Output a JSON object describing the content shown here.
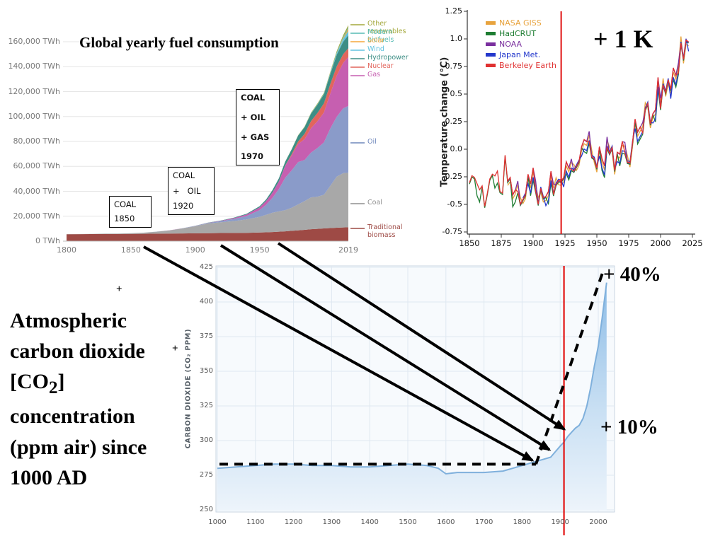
{
  "chart_data": [
    {
      "id": "fuel",
      "type": "area",
      "stacked": true,
      "title": "Global yearly fuel consumption",
      "x": [
        1800,
        1810,
        1820,
        1830,
        1840,
        1850,
        1860,
        1870,
        1880,
        1890,
        1900,
        1910,
        1920,
        1930,
        1940,
        1950,
        1955,
        1960,
        1965,
        1970,
        1975,
        1980,
        1985,
        1990,
        1995,
        2000,
        2005,
        2010,
        2015,
        2019
      ],
      "series": [
        {
          "name": "Traditional biomass",
          "color": "#9E4A45",
          "values": [
            5550,
            5600,
            5650,
            5700,
            5750,
            5800,
            5900,
            6000,
            6100,
            6200,
            6300,
            6400,
            6500,
            6600,
            6700,
            6900,
            7100,
            7300,
            7600,
            7900,
            8300,
            8700,
            9100,
            9600,
            9900,
            10200,
            10500,
            10800,
            11000,
            11100
          ]
        },
        {
          "name": "Coal",
          "color": "#A8A8A8",
          "values": [
            100,
            150,
            200,
            300,
            400,
            570,
            900,
            1600,
            2500,
            4000,
            5700,
            7800,
            8700,
            9500,
            10800,
            12600,
            14000,
            15500,
            16300,
            17000,
            18500,
            20800,
            23000,
            25500,
            25800,
            27000,
            34000,
            41000,
            43500,
            43800
          ]
        },
        {
          "name": "Oil",
          "color": "#8A9BC9",
          "values": [
            0,
            0,
            0,
            0,
            0,
            0,
            10,
            60,
            90,
            130,
            180,
            400,
            900,
            1700,
            2700,
            5400,
            8000,
            12000,
            18000,
            26000,
            30000,
            34000,
            33000,
            36000,
            39000,
            42000,
            46000,
            48000,
            52000,
            53600
          ]
        },
        {
          "name": "Gas",
          "color": "#C65FB0",
          "values": [
            0,
            0,
            0,
            0,
            0,
            0,
            0,
            10,
            30,
            50,
            80,
            150,
            300,
            700,
            1200,
            2200,
            3000,
            4200,
            6000,
            9600,
            12000,
            14500,
            16800,
            19500,
            21500,
            24000,
            28000,
            33000,
            36500,
            39300
          ]
        },
        {
          "name": "Nuclear",
          "color": "#E2655C",
          "values": [
            0,
            0,
            0,
            0,
            0,
            0,
            0,
            0,
            0,
            0,
            0,
            0,
            0,
            0,
            0,
            0,
            0,
            0,
            30,
            220,
            1000,
            2000,
            4200,
            5700,
            6600,
            7300,
            7600,
            7400,
            7000,
            7000
          ]
        },
        {
          "name": "Hydropower",
          "color": "#3D8E85",
          "values": [
            0,
            0,
            0,
            0,
            0,
            0,
            0,
            0,
            10,
            30,
            50,
            100,
            200,
            400,
            600,
            900,
            1200,
            1900,
            2500,
            3100,
            3900,
            4700,
            5300,
            6000,
            6700,
            7300,
            8100,
            9300,
            10000,
            10500
          ]
        },
        {
          "name": "Wind",
          "color": "#62C3E0",
          "values": [
            0,
            0,
            0,
            0,
            0,
            0,
            0,
            0,
            0,
            0,
            0,
            0,
            0,
            0,
            0,
            0,
            0,
            0,
            0,
            0,
            0,
            0,
            0,
            0,
            20,
            90,
            300,
            900,
            2200,
            3500
          ]
        },
        {
          "name": "Solar",
          "color": "#F5A73B",
          "values": [
            0,
            0,
            0,
            0,
            0,
            0,
            0,
            0,
            0,
            0,
            0,
            0,
            0,
            0,
            0,
            0,
            0,
            0,
            0,
            0,
            0,
            0,
            0,
            0,
            0,
            3,
            10,
            90,
            700,
            1800
          ]
        },
        {
          "name": "Modern biofuels",
          "color": "#56BBB4",
          "values": [
            0,
            0,
            0,
            0,
            0,
            0,
            0,
            0,
            0,
            0,
            0,
            0,
            0,
            0,
            0,
            0,
            0,
            0,
            0,
            0,
            50,
            150,
            250,
            350,
            420,
            500,
            650,
            900,
            1000,
            1100
          ]
        },
        {
          "name": "Other renewables",
          "color": "#A4A83C",
          "values": [
            0,
            0,
            0,
            0,
            0,
            0,
            0,
            0,
            0,
            0,
            0,
            0,
            0,
            0,
            0,
            0,
            0,
            0,
            0,
            50,
            100,
            200,
            300,
            400,
            500,
            600,
            800,
            1100,
            1400,
            1600
          ]
        }
      ],
      "y_ticks": [
        {
          "value": 0,
          "label": "0 TWh"
        },
        {
          "value": 20000,
          "label": "20,000 TWh"
        },
        {
          "value": 40000,
          "label": "40,000 TWh"
        },
        {
          "value": 60000,
          "label": "60,000 TWh"
        },
        {
          "value": 80000,
          "label": "80,000 TWh"
        },
        {
          "value": 100000,
          "label": "100,000 TWh"
        },
        {
          "value": 120000,
          "label": "120,000 TWh"
        },
        {
          "value": 140000,
          "label": "140,000 TWh"
        },
        {
          "value": 160000,
          "label": "160,000 TWh"
        }
      ],
      "x_ticks": [
        {
          "value": 1800,
          "label": "1800"
        },
        {
          "value": 1850,
          "label": "1850"
        },
        {
          "value": 1900,
          "label": "1900"
        },
        {
          "value": 1950,
          "label": "1950"
        },
        {
          "value": 2019,
          "label": "2019"
        }
      ],
      "ylim": [
        0,
        160000
      ],
      "legend_position": "right",
      "legend": [
        {
          "label": "Other renewables",
          "color": "#A4A83C"
        },
        {
          "label": "Modern biofuels",
          "color": "#56BBB4"
        },
        {
          "label": "Solar",
          "color": "#F5A73B"
        },
        {
          "label": "Wind",
          "color": "#62C3E0"
        },
        {
          "label": "Hydropower",
          "color": "#3D8E85"
        },
        {
          "label": "Nuclear",
          "color": "#E2655C"
        },
        {
          "label": "Gas",
          "color": "#C65FB0"
        },
        {
          "label": "Oil",
          "color": "#6F87BB"
        },
        {
          "label": "Coal",
          "color": "#8F8F8F"
        },
        {
          "label": "Traditional biomass",
          "color": "#9E4A45"
        }
      ],
      "annotations": [
        {
          "lines": [
            "COAL",
            "1850"
          ],
          "bold": false
        },
        {
          "lines": [
            "COAL",
            "+   OIL",
            "1920"
          ],
          "bold": false
        },
        {
          "lines": [
            "COAL",
            "+ OIL",
            "+ GAS",
            "1970"
          ],
          "bold": true
        }
      ]
    },
    {
      "id": "temperature",
      "type": "line",
      "ylabel": "Temperature change (°C)",
      "annotation": "+ 1 K",
      "x_start": 1850,
      "x_step": 2,
      "base_values": [
        -0.3,
        -0.25,
        -0.28,
        -0.35,
        -0.42,
        -0.3,
        -0.5,
        -0.4,
        -0.28,
        -0.25,
        -0.28,
        -0.25,
        -0.35,
        -0.38,
        -0.05,
        -0.3,
        -0.28,
        -0.45,
        -0.42,
        -0.35,
        -0.48,
        -0.45,
        -0.42,
        -0.25,
        -0.35,
        -0.22,
        -0.35,
        -0.48,
        -0.35,
        -0.45,
        -0.45,
        -0.42,
        -0.25,
        -0.38,
        -0.3,
        -0.28,
        -0.3,
        -0.28,
        -0.15,
        -0.22,
        -0.15,
        -0.18,
        -0.15,
        -0.12,
        0.0,
        0.05,
        0.02,
        0.1,
        -0.05,
        -0.08,
        -0.18,
        0.0,
        -0.12,
        -0.2,
        0.05,
        -0.02,
        0.02,
        -0.2,
        -0.05,
        -0.08,
        0.02,
        0.0,
        -0.1,
        -0.12,
        0.05,
        0.25,
        0.12,
        0.15,
        0.18,
        0.38,
        0.42,
        0.22,
        0.3,
        0.32,
        0.6,
        0.4,
        0.6,
        0.52,
        0.62,
        0.52,
        0.7,
        0.62,
        0.72,
        0.98,
        0.82,
        0.98,
        0.95
      ],
      "series": [
        {
          "name": "NASA GISS",
          "color": "#E8A33D",
          "offset": 0.0,
          "start_year": 1880
        },
        {
          "name": "HadCRUT",
          "color": "#1E7D32",
          "offset": -0.03,
          "start_year": 1850
        },
        {
          "name": "NOAA",
          "color": "#7A2F9E",
          "offset": 0.02,
          "start_year": 1880
        },
        {
          "name": "Japan Met.",
          "color": "#2438CC",
          "offset": -0.02,
          "start_year": 1892
        },
        {
          "name": "Berkeley Earth",
          "color": "#E03131",
          "offset": 0.01,
          "start_year": 1850
        }
      ],
      "y_ticks": [
        "1.25",
        "1.0",
        "0.75",
        "0.5",
        "0.25",
        "0.0",
        "-0.25",
        "-0.5",
        "-0.75"
      ],
      "x_ticks": [
        "1850",
        "1875",
        "1900",
        "1925",
        "1950",
        "1975",
        "2000",
        "2025"
      ],
      "ylim": [
        -0.75,
        1.25
      ],
      "red_line_year": 1922,
      "legend_position": "top-left",
      "grid": false
    },
    {
      "id": "co2",
      "type": "area",
      "ylabel": "CARBON DIOXIDE (CO₂ PPM)",
      "points": [
        [
          1000,
          280
        ],
        [
          1050,
          281
        ],
        [
          1100,
          282
        ],
        [
          1150,
          283
        ],
        [
          1200,
          283
        ],
        [
          1250,
          282
        ],
        [
          1300,
          282
        ],
        [
          1350,
          281
        ],
        [
          1400,
          281
        ],
        [
          1450,
          282
        ],
        [
          1500,
          283
        ],
        [
          1550,
          282
        ],
        [
          1580,
          280
        ],
        [
          1600,
          276
        ],
        [
          1630,
          277
        ],
        [
          1660,
          277
        ],
        [
          1700,
          277
        ],
        [
          1750,
          278
        ],
        [
          1800,
          282
        ],
        [
          1850,
          286
        ],
        [
          1875,
          288
        ],
        [
          1900,
          296
        ],
        [
          1910,
          299
        ],
        [
          1920,
          303
        ],
        [
          1930,
          306
        ],
        [
          1940,
          309
        ],
        [
          1950,
          311
        ],
        [
          1960,
          316
        ],
        [
          1970,
          325
        ],
        [
          1980,
          338
        ],
        [
          1990,
          354
        ],
        [
          2000,
          368
        ],
        [
          2010,
          388
        ],
        [
          2020,
          410
        ],
        [
          2022,
          414
        ]
      ],
      "y_ticks": [
        "425",
        "400",
        "375",
        "350",
        "325",
        "300",
        "275",
        "250"
      ],
      "x_ticks": [
        "1000",
        "1100",
        "1200",
        "1300",
        "1400",
        "1500",
        "1600",
        "1700",
        "1800",
        "1900",
        "2000"
      ],
      "ylim": [
        250,
        425
      ],
      "xlim": [
        1000,
        2022
      ],
      "red_line_year": 1910,
      "baseline_ppm": 283,
      "annotations": [
        {
          "text": "+ 40%"
        },
        {
          "text": "+ 10%"
        }
      ],
      "grid": true
    }
  ],
  "left_note": {
    "l1": "Atmospheric",
    "l2": "carbon dioxide",
    "l3a": "[CO",
    "l3sub": "2",
    "l3b": "]",
    "l4": "concentration",
    "l5": "(ppm air) since",
    "l6": "1000 AD"
  },
  "misc": {
    "plus_1": "+",
    "plus_2": "+"
  }
}
